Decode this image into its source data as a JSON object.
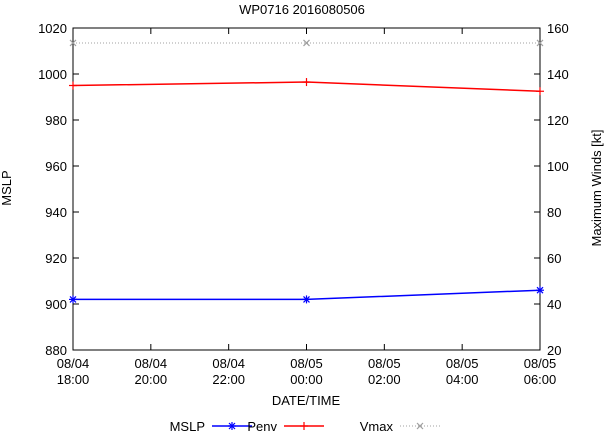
{
  "chart_data": {
    "type": "line",
    "title": "WP0716 2016080506",
    "xlabel": "DATE/TIME",
    "ylabel_left": "MSLP",
    "ylabel_right": "Maximum Winds [kt]",
    "x_hours": [
      0,
      6,
      12
    ],
    "xlim": [
      0,
      12
    ],
    "x_tick_hours": [
      0,
      2,
      4,
      6,
      8,
      10,
      12
    ],
    "x_tick_labels": [
      {
        "date": "08/04",
        "time": "18:00"
      },
      {
        "date": "08/04",
        "time": "20:00"
      },
      {
        "date": "08/04",
        "time": "22:00"
      },
      {
        "date": "08/05",
        "time": "00:00"
      },
      {
        "date": "08/05",
        "time": "02:00"
      },
      {
        "date": "08/05",
        "time": "04:00"
      },
      {
        "date": "08/05",
        "time": "06:00"
      }
    ],
    "ylim_left": [
      880,
      1020
    ],
    "y_ticks_left": [
      880,
      900,
      920,
      940,
      960,
      980,
      1000,
      1020
    ],
    "ylim_right": [
      20,
      160
    ],
    "y_ticks_right": [
      20,
      40,
      60,
      80,
      100,
      120,
      140,
      160
    ],
    "series": [
      {
        "name": "MSLP",
        "axis": "left",
        "values": [
          902,
          902,
          906
        ],
        "color": "#0000ff",
        "marker": "star"
      },
      {
        "name": "Penv",
        "axis": "left",
        "values": [
          995,
          996.5,
          992.5
        ],
        "color": "#ff0000",
        "marker": "plus"
      },
      {
        "name": "Vmax",
        "axis": "right",
        "values": [
          153.5,
          153.5,
          153.5
        ],
        "color": "#a0a0a0",
        "marker": "cross",
        "dashed": true
      }
    ],
    "legend": {
      "position": "bottom",
      "entries": [
        {
          "label": "MSLP",
          "series": "MSLP"
        },
        {
          "label": "Penv",
          "series": "Penv"
        },
        {
          "label": "Vmax",
          "series": "Vmax"
        }
      ]
    }
  }
}
